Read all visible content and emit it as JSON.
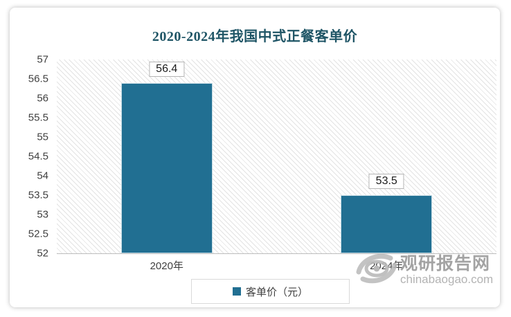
{
  "chart_data": {
    "type": "bar",
    "title": "2020-2024年我国中式正餐客单价",
    "categories": [
      "2020年",
      "2024年"
    ],
    "values": [
      56.4,
      53.5
    ],
    "value_labels": [
      "56.4",
      "53.5"
    ],
    "series_name": "客单价（元）",
    "xlabel": "",
    "ylabel": "",
    "ylim": [
      52,
      57
    ],
    "ytick_labels": [
      "57",
      "56.5",
      "56",
      "55.5",
      "55",
      "54.5",
      "54",
      "53.5",
      "53",
      "52.5",
      "52"
    ],
    "grid": false,
    "plot_background": "diagonal-hatch",
    "legend": [
      "客单价（元）"
    ],
    "legend_position": "bottom-center",
    "colors": {
      "bar": "#216F92",
      "title": "#1F5566",
      "axis_line": "#bdbdbd",
      "tick_text": "#3f3f3f"
    }
  },
  "watermark": {
    "name": "观研报告网",
    "domain": "chinabaogao.com"
  }
}
